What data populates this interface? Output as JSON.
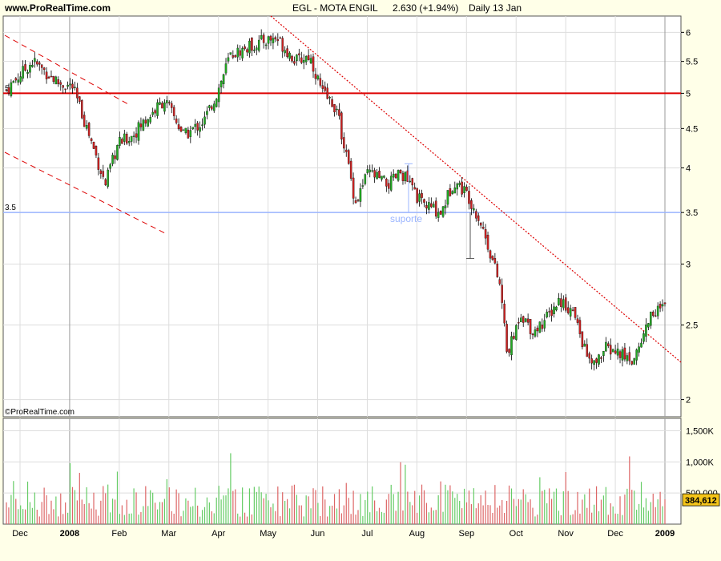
{
  "header": {
    "site": "www.ProRealTime.com",
    "instrument": "EGL - MOTA ENGIL",
    "last_price": "2.630 (+1.94%)",
    "period": "Daily  13 Jan"
  },
  "watermark": "©ProRealTime.com",
  "colors": {
    "background": "#FFFFE8",
    "plot_bg": "#FFFFFF",
    "grid": "#DDDDDD",
    "bullish": "#22AA22",
    "bearish": "#CC2222",
    "resistance": "#DD0000",
    "support": "#9BB5FF",
    "annotation": "#9BB5FF",
    "vol_label_bg": "#F5C518"
  },
  "chart_data": [
    {
      "type": "candlestick",
      "scale": "log",
      "ylim": [
        1.9,
        6.3
      ],
      "y_ticks": [
        "2",
        "2.5",
        "3",
        "3.5",
        "4",
        "4.5",
        "5",
        "5.5",
        "6"
      ],
      "x_labels": [
        "Dec",
        "2008",
        "Feb",
        "Mar",
        "Apr",
        "May",
        "Jun",
        "Jul",
        "Aug",
        "Sep",
        "Oct",
        "Nov",
        "Dec",
        "2009"
      ],
      "horizontal_lines": [
        {
          "value": 5.0,
          "label": "5",
          "style": "solid-red"
        },
        {
          "value": 3.5,
          "label": "3.5",
          "style": "solid-blue"
        }
      ],
      "annotations": [
        {
          "text": "suporte"
        }
      ],
      "close_path": [
        {
          "t": 0.0,
          "p": 5.05
        },
        {
          "t": 0.04,
          "p": 5.5
        },
        {
          "t": 0.08,
          "p": 5.15
        },
        {
          "t": 0.1,
          "p": 5.1
        },
        {
          "t": 0.13,
          "p": 4.3
        },
        {
          "t": 0.15,
          "p": 3.8
        },
        {
          "t": 0.17,
          "p": 4.3
        },
        {
          "t": 0.19,
          "p": 4.4
        },
        {
          "t": 0.22,
          "p": 4.7
        },
        {
          "t": 0.24,
          "p": 4.9
        },
        {
          "t": 0.27,
          "p": 4.4
        },
        {
          "t": 0.3,
          "p": 4.6
        },
        {
          "t": 0.32,
          "p": 5.0
        },
        {
          "t": 0.34,
          "p": 5.6
        },
        {
          "t": 0.36,
          "p": 5.7
        },
        {
          "t": 0.39,
          "p": 5.85
        },
        {
          "t": 0.41,
          "p": 5.9
        },
        {
          "t": 0.44,
          "p": 5.5
        },
        {
          "t": 0.46,
          "p": 5.6
        },
        {
          "t": 0.48,
          "p": 5.0
        },
        {
          "t": 0.5,
          "p": 4.8
        },
        {
          "t": 0.52,
          "p": 4.0
        },
        {
          "t": 0.53,
          "p": 3.6
        },
        {
          "t": 0.55,
          "p": 3.95
        },
        {
          "t": 0.58,
          "p": 3.8
        },
        {
          "t": 0.6,
          "p": 3.95
        },
        {
          "t": 0.63,
          "p": 3.6
        },
        {
          "t": 0.66,
          "p": 3.5
        },
        {
          "t": 0.68,
          "p": 3.85
        },
        {
          "t": 0.7,
          "p": 3.7
        },
        {
          "t": 0.72,
          "p": 3.4
        },
        {
          "t": 0.74,
          "p": 3.0
        },
        {
          "t": 0.75,
          "p": 2.8
        },
        {
          "t": 0.76,
          "p": 2.3
        },
        {
          "t": 0.77,
          "p": 2.4
        },
        {
          "t": 0.78,
          "p": 2.6
        },
        {
          "t": 0.8,
          "p": 2.45
        },
        {
          "t": 0.82,
          "p": 2.55
        },
        {
          "t": 0.84,
          "p": 2.7
        },
        {
          "t": 0.86,
          "p": 2.6
        },
        {
          "t": 0.88,
          "p": 2.3
        },
        {
          "t": 0.89,
          "p": 2.2
        },
        {
          "t": 0.91,
          "p": 2.33
        },
        {
          "t": 0.93,
          "p": 2.3
        },
        {
          "t": 0.95,
          "p": 2.25
        },
        {
          "t": 0.96,
          "p": 2.33
        },
        {
          "t": 0.98,
          "p": 2.6
        },
        {
          "t": 1.0,
          "p": 2.63
        }
      ]
    },
    {
      "type": "bar",
      "title": "volume",
      "ylim": [
        0,
        1700000
      ],
      "y_ticks": [
        "1,500K",
        "1,000K",
        "500,000"
      ],
      "last_value_label": "384,612"
    }
  ]
}
